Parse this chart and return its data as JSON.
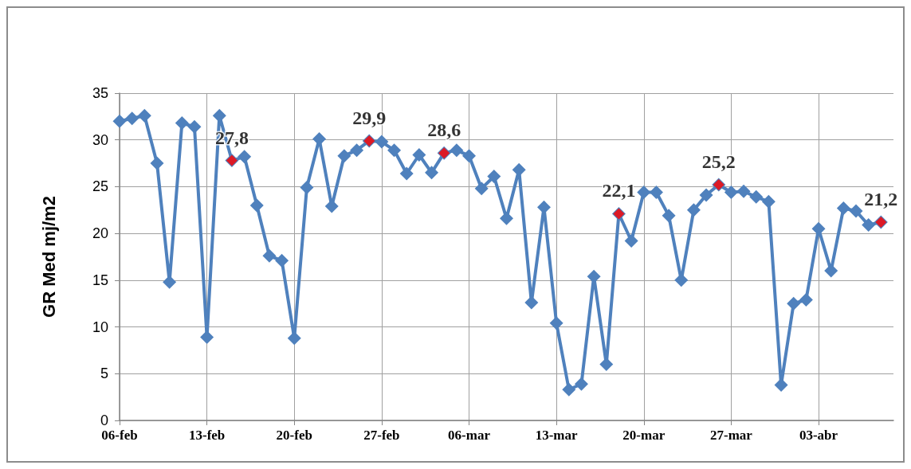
{
  "chart_data": {
    "type": "line",
    "ylabel": "GR Med mj/m2",
    "x": [
      "--02-06",
      "--02-07",
      "--02-08",
      "--02-09",
      "--02-10",
      "--02-11",
      "--02-12",
      "--02-13",
      "--02-14",
      "--02-15",
      "--02-16",
      "--02-17",
      "--02-18",
      "--02-19",
      "--02-20",
      "--02-21",
      "--02-22",
      "--02-23",
      "--02-24",
      "--02-25",
      "--02-26",
      "--02-27",
      "--02-28",
      "--03-01",
      "--03-02",
      "--03-03",
      "--03-04",
      "--03-05",
      "--03-06",
      "--03-07",
      "--03-08",
      "--03-09",
      "--03-10",
      "--03-11",
      "--03-12",
      "--03-13",
      "--03-14",
      "--03-15",
      "--03-16",
      "--03-17",
      "--03-18",
      "--03-19",
      "--03-20",
      "--03-21",
      "--03-22",
      "--03-23",
      "--03-24",
      "--03-25",
      "--03-26",
      "--03-27",
      "--03-28",
      "--03-29",
      "--03-30",
      "--03-31",
      "--04-01",
      "--04-02",
      "--04-03",
      "--04-04",
      "--04-05",
      "--04-06",
      "--04-07",
      "--04-08"
    ],
    "series": [
      {
        "color": "#4f81bd",
        "values": [
          32.0,
          32.3,
          32.6,
          27.5,
          14.8,
          31.8,
          31.4,
          8.9,
          32.6,
          27.8,
          28.2,
          23.0,
          17.6,
          17.1,
          8.8,
          24.9,
          30.1,
          22.9,
          28.3,
          28.9,
          29.9,
          29.8,
          28.9,
          26.4,
          28.4,
          26.5,
          28.6,
          28.9,
          28.3,
          24.8,
          26.1,
          21.6,
          26.8,
          12.6,
          22.8,
          10.4,
          3.3,
          3.9,
          15.4,
          6.0,
          22.1,
          19.2,
          24.4,
          24.4,
          21.9,
          15.0,
          22.5,
          24.1,
          25.2,
          24.4,
          24.5,
          23.9,
          23.4,
          3.8,
          12.5,
          12.9,
          20.5,
          16.0,
          22.7,
          22.4,
          20.9,
          21.2
        ]
      },
      {
        "type": "scatter",
        "color": "#ff0000",
        "x": [
          "--02-15",
          "--02-26",
          "--03-04",
          "--03-18",
          "--03-26",
          "--04-08"
        ],
        "values": [
          27.8,
          29.9,
          28.6,
          22.1,
          25.2,
          21.2
        ],
        "value_labels": [
          "27,8",
          "29,9",
          "28,6",
          "22,1",
          "25,2",
          "21,2"
        ]
      }
    ],
    "xlim": [
      "--02-06",
      "--04-09"
    ],
    "xticks": [
      {
        "value": "--02-06",
        "label": "06-feb"
      },
      {
        "value": "--02-13",
        "label": "13-feb"
      },
      {
        "value": "--02-20",
        "label": "20-feb"
      },
      {
        "value": "--02-27",
        "label": "27-feb"
      },
      {
        "value": "--03-06",
        "label": "06-mar"
      },
      {
        "value": "--03-13",
        "label": "13-mar"
      },
      {
        "value": "--03-20",
        "label": "20-mar"
      },
      {
        "value": "--03-27",
        "label": "27-mar"
      },
      {
        "value": "--04-03",
        "label": "03-abr"
      }
    ],
    "ylim": [
      0,
      35
    ],
    "yticks": [
      0,
      5,
      10,
      15,
      20,
      25,
      30,
      35
    ],
    "grid": true,
    "marker": "diamond",
    "line_style": "solid"
  }
}
